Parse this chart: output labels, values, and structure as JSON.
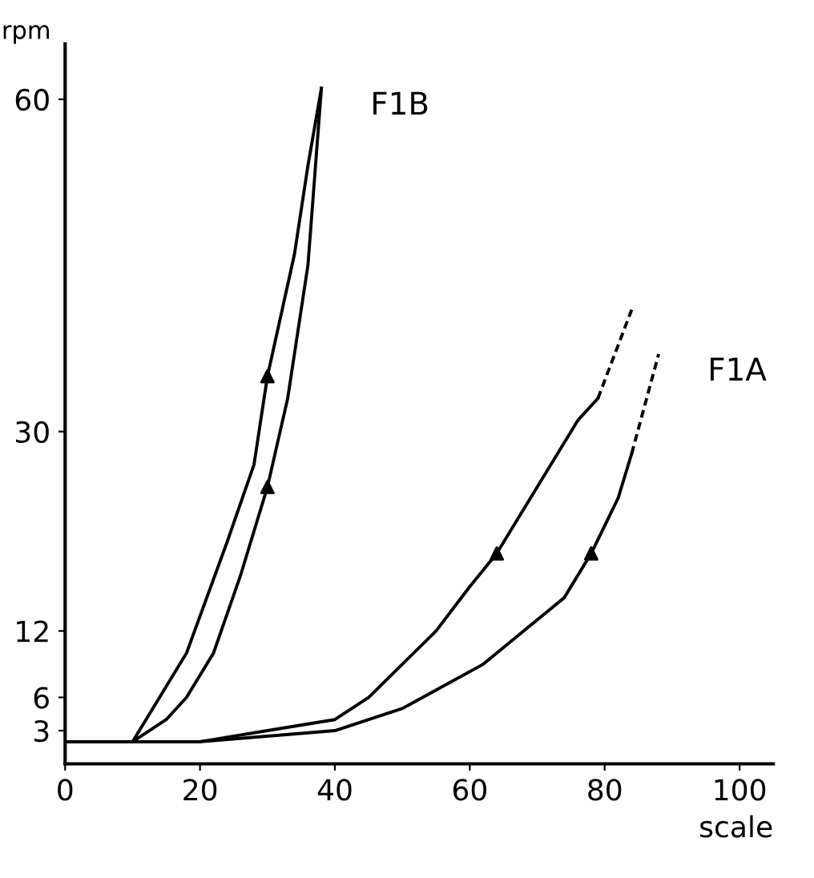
{
  "chart_data": {
    "type": "line",
    "xlabel": "scale",
    "ylabel": "rpm",
    "xlim": [
      0,
      105
    ],
    "xticks": [
      0,
      20,
      40,
      60,
      80,
      100
    ],
    "ylim": [
      0,
      65
    ],
    "yticks": [
      3,
      6,
      12,
      30,
      60
    ],
    "grid": false,
    "legend": false,
    "series": [
      {
        "color": "#000000",
        "line_style": "solid",
        "marker": "none",
        "x": [
          0,
          10,
          12,
          18,
          24,
          28,
          30,
          34,
          36,
          38
        ],
        "values": [
          2,
          2,
          4,
          10,
          20,
          27,
          35,
          46,
          54,
          61
        ]
      },
      {
        "name": "F1B",
        "color": "#000000",
        "line_style": "solid",
        "marker": "none",
        "x": [
          0,
          10,
          15,
          18,
          22,
          26,
          30,
          33,
          36,
          38
        ],
        "values": [
          2,
          2,
          4,
          6,
          10,
          17,
          25,
          33,
          45,
          61
        ]
      },
      {
        "color": "#000000",
        "line_style": "solid",
        "marker": "none",
        "x": [
          0,
          20,
          30,
          40,
          45,
          50,
          55,
          60,
          64,
          68,
          72,
          76,
          79
        ],
        "values": [
          2,
          2,
          3,
          4,
          6,
          9,
          12,
          16,
          19,
          23,
          27,
          31,
          33
        ]
      },
      {
        "color": "#000000",
        "line_style": "dashed",
        "marker": "none",
        "x": [
          79,
          84
        ],
        "values": [
          33,
          41
        ]
      },
      {
        "color": "#000000",
        "line_style": "solid",
        "marker": "none",
        "x": [
          0,
          20,
          40,
          50,
          56,
          62,
          68,
          74,
          78,
          82,
          84
        ],
        "values": [
          2,
          2,
          3,
          5,
          7,
          9,
          12,
          15,
          19,
          24,
          28
        ]
      },
      {
        "name": "F1A",
        "color": "#000000",
        "line_style": "dashed",
        "marker": "none",
        "x": [
          84,
          88
        ],
        "values": [
          28,
          37
        ]
      },
      {
        "type": "scatter",
        "color": "#000000",
        "marker": "triangle",
        "x": [
          30,
          30,
          64,
          78
        ],
        "values": [
          35,
          25,
          19,
          19
        ]
      }
    ]
  }
}
